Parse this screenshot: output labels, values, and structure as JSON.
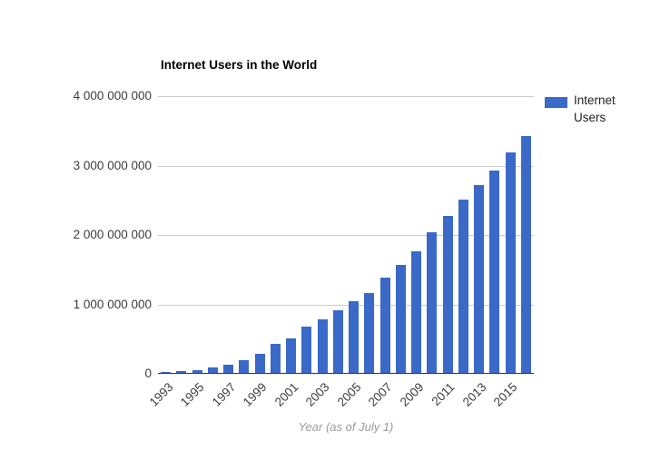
{
  "page": {
    "background_color": "#ffffff"
  },
  "chart": {
    "title": "Internet Users in the World",
    "axis_title": "Year (as of July 1)",
    "legend_label": "Internet Users",
    "colors": {
      "bar": "#3a69c8",
      "gridline": "#cccccc",
      "baseline": "#333333",
      "tick_text": "#3c3c3c",
      "axis_title_text": "#9b9b9b"
    }
  },
  "chart_data": {
    "type": "bar",
    "title": "Internet Users in the World",
    "xlabel": "Year (as of July 1)",
    "ylabel": "",
    "series_name": "Internet Users",
    "categories": [
      "1993",
      "1994",
      "1995",
      "1996",
      "1997",
      "1998",
      "1999",
      "2000",
      "2001",
      "2002",
      "2003",
      "2004",
      "2005",
      "2006",
      "2007",
      "2008",
      "2009",
      "2010",
      "2011",
      "2012",
      "2013",
      "2014",
      "2015",
      "2016"
    ],
    "values": [
      14161570,
      25454590,
      44838900,
      77433860,
      120758310,
      188023930,
      280866670,
      413425190,
      500609240,
      662663600,
      778555680,
      910060180,
      1030101289,
      1157500065,
      1373226988,
      1562067594,
      1752333178,
      2034259368,
      2272463038,
      2511615523,
      2712239573,
      2925249355,
      3185996155,
      3424971237
    ],
    "ylim": [
      0,
      4000000000
    ],
    "ytick_labels": [
      "0",
      "1 000 000 000",
      "2 000 000 000",
      "3 000 000 000",
      "4 000 000 000"
    ],
    "xtick_labels_shown": [
      "1993",
      "1995",
      "1997",
      "1999",
      "2001",
      "2003",
      "2005",
      "2007",
      "2009",
      "2011",
      "2013",
      "2015"
    ],
    "x_label_every": 2,
    "grid": "horizontal",
    "legend_position": "right",
    "bar_color": "#3a69c8"
  }
}
